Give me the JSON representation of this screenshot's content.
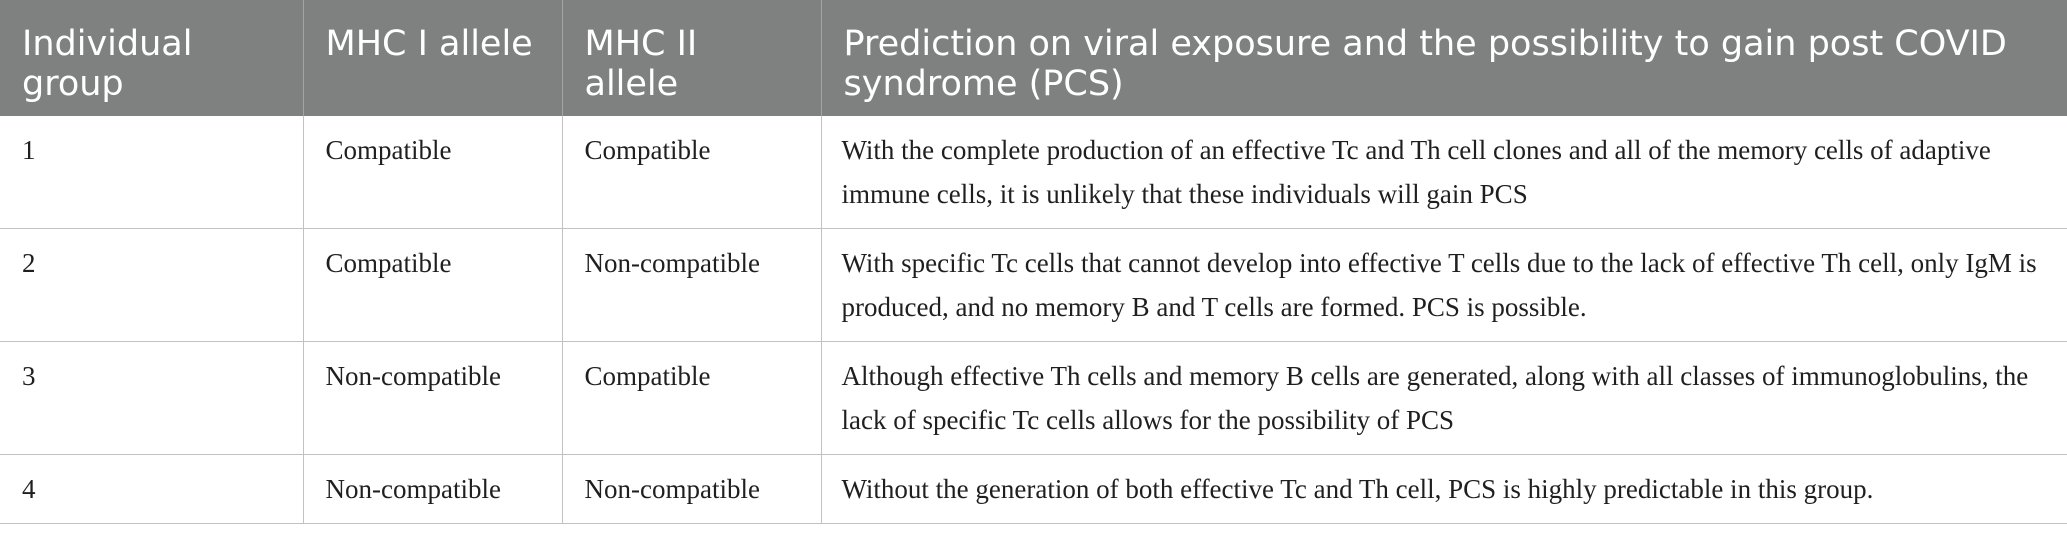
{
  "table": {
    "headers": [
      "Individual group",
      "MHC I allele",
      "MHC II allele",
      "Prediction on viral exposure and the possibility to gain post COVID syndrome (PCS)"
    ],
    "rows": [
      {
        "group": "1",
        "mhc1": "Compatible",
        "mhc2": "Compatible",
        "prediction": "With the complete production of an effective Tc and Th cell clones and all of the memory cells of adaptive immune cells, it is unlikely that these individuals will gain PCS"
      },
      {
        "group": "2",
        "mhc1": "Compatible",
        "mhc2": "Non-compatible",
        "prediction": "With specific Tc cells that cannot develop into effective T cells due to the lack of effective Th cell, only IgM is produced, and no memory B and T cells are formed. PCS is possible."
      },
      {
        "group": "3",
        "mhc1": "Non-compatible",
        "mhc2": "Compatible",
        "prediction": "Although effective Th cells and memory B cells are generated, along with all classes of immunoglobulins, the lack of specific Tc cells allows for the possibility of PCS"
      },
      {
        "group": "4",
        "mhc1": "Non-compatible",
        "mhc2": "Non-compatible",
        "prediction": "Without the generation of both effective Tc and Th cell, PCS is highly predictable in this group."
      }
    ]
  }
}
